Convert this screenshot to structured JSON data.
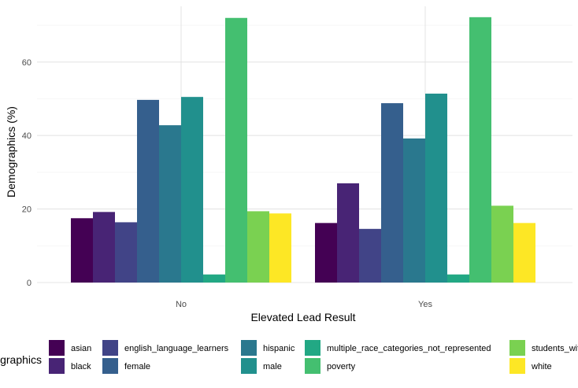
{
  "chart_data": {
    "type": "bar",
    "categories": [
      "No",
      "Yes"
    ],
    "xlabel": "Elevated Lead Result",
    "ylabel": "Demographics (%)",
    "ylim": [
      0,
      75
    ],
    "yticks": [
      0,
      20,
      40,
      60
    ],
    "grid": true,
    "legend_position": "bottom",
    "legend_title": "Demographics",
    "series": [
      {
        "name": "asian",
        "color": "#440154",
        "values": [
          17.5,
          16.2
        ]
      },
      {
        "name": "black",
        "color": "#482475",
        "values": [
          19.2,
          27.0
        ]
      },
      {
        "name": "english_language_learners",
        "color": "#414487",
        "values": [
          16.4,
          14.6
        ]
      },
      {
        "name": "female",
        "color": "#355F8D",
        "values": [
          49.7,
          48.8
        ]
      },
      {
        "name": "hispanic",
        "color": "#2A788E",
        "values": [
          42.8,
          39.2
        ]
      },
      {
        "name": "male",
        "color": "#21908D",
        "values": [
          50.5,
          51.4
        ]
      },
      {
        "name": "multiple_race_categories_not_represented",
        "color": "#22A884",
        "values": [
          2.2,
          2.2
        ]
      },
      {
        "name": "poverty",
        "color": "#44BF70",
        "values": [
          72.0,
          72.2
        ]
      },
      {
        "name": "students_with_disabilities",
        "color": "#7AD151",
        "values": [
          19.4,
          20.9
        ]
      },
      {
        "name": "white",
        "color": "#FDE725",
        "values": [
          18.8,
          16.2
        ]
      }
    ]
  }
}
